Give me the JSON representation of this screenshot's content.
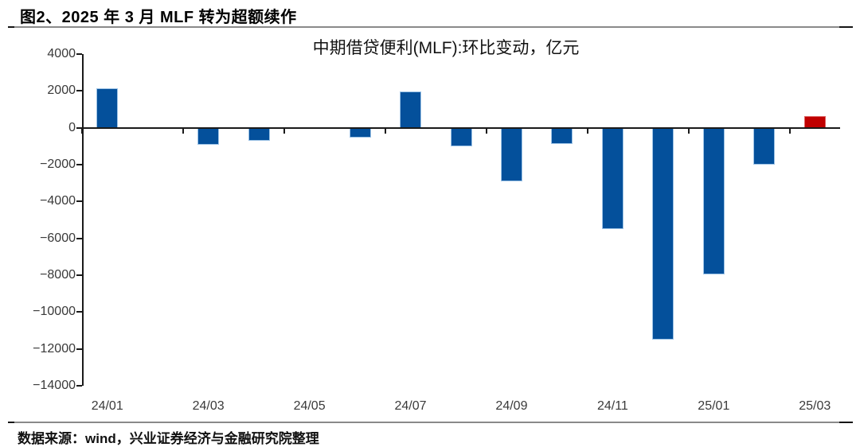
{
  "header": {
    "title": "图2、2025 年 3 月 MLF 转为超额续作"
  },
  "footer": {
    "text": "数据来源：wind，兴业证券经济与金融研究院整理"
  },
  "chart_data": {
    "type": "bar",
    "title": "中期借贷便利(MLF):环比变动，亿元",
    "categories": [
      "24/01",
      "24/02",
      "24/03",
      "24/04",
      "24/05",
      "24/06",
      "24/07",
      "24/08",
      "24/09",
      "24/10",
      "24/11",
      "24/12",
      "25/01",
      "25/02",
      "25/03"
    ],
    "values": [
      2160,
      10,
      -940,
      -700,
      0,
      -550,
      1970,
      -1010,
      -2910,
      -890,
      -5500,
      -11500,
      -7950,
      -2000,
      630
    ],
    "xlabel": "",
    "ylabel": "",
    "ylim": [
      -14000,
      4000
    ],
    "y_ticks": [
      4000,
      2000,
      0,
      -2000,
      -4000,
      -6000,
      -8000,
      -10000,
      -12000,
      -14000
    ],
    "x_tick_labels": [
      "24/01",
      "24/03",
      "24/05",
      "24/07",
      "24/09",
      "24/11",
      "25/01",
      "25/03"
    ],
    "x_label_every": 2,
    "grid": false,
    "legend": null,
    "colors": {
      "bar_default": "#04509B",
      "bar_default_border": "#9DC3E6",
      "bar_highlight": "#C00000",
      "bar_highlight_border": "#DD6060",
      "highlight_index": 14,
      "axis": "#1a1a1a",
      "label_text": "#3a3a3a"
    }
  }
}
